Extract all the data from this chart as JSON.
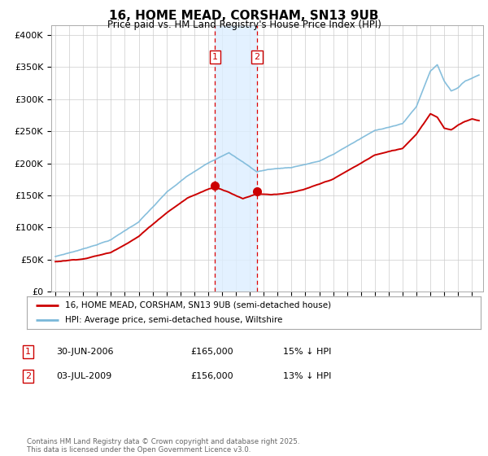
{
  "title": "16, HOME MEAD, CORSHAM, SN13 9UB",
  "subtitle": "Price paid vs. HM Land Registry's House Price Index (HPI)",
  "ylabel_ticks": [
    "£0",
    "£50K",
    "£100K",
    "£150K",
    "£200K",
    "£250K",
    "£300K",
    "£350K",
    "£400K"
  ],
  "ytick_values": [
    0,
    50000,
    100000,
    150000,
    200000,
    250000,
    300000,
    350000,
    400000
  ],
  "ylim": [
    0,
    415000
  ],
  "xlim_start": 1994.7,
  "xlim_end": 2025.8,
  "hpi_color": "#7ab8d9",
  "price_color": "#cc0000",
  "marker1_date": 2006.5,
  "marker1_price": 165000,
  "marker2_date": 2009.52,
  "marker2_price": 156000,
  "shaded_region": [
    2006.5,
    2009.52
  ],
  "legend_entry1": "16, HOME MEAD, CORSHAM, SN13 9UB (semi-detached house)",
  "legend_entry2": "HPI: Average price, semi-detached house, Wiltshire",
  "table_row1": [
    "1",
    "30-JUN-2006",
    "£165,000",
    "15% ↓ HPI"
  ],
  "table_row2": [
    "2",
    "03-JUL-2009",
    "£156,000",
    "13% ↓ HPI"
  ],
  "footnote": "Contains HM Land Registry data © Crown copyright and database right 2025.\nThis data is licensed under the Open Government Licence v3.0.",
  "background_color": "#ffffff",
  "grid_color": "#cccccc"
}
